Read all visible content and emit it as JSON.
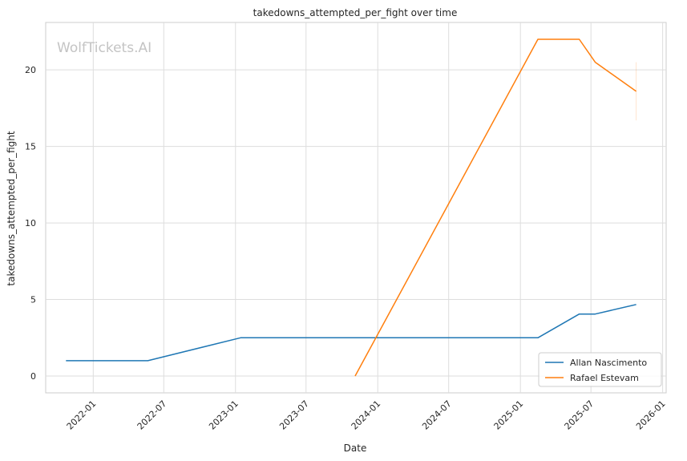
{
  "chart_data": {
    "type": "line",
    "title": "takedowns_attempted_per_fight over time",
    "xlabel": "Date",
    "ylabel": "takedowns_attempted_per_fight",
    "watermark": "WolfTickets.AI",
    "x_ticks": [
      "2022-01",
      "2022-07",
      "2023-01",
      "2023-07",
      "2024-01",
      "2024-07",
      "2025-01",
      "2025-07",
      "2026-01"
    ],
    "y_ticks": [
      0,
      5,
      10,
      15,
      20
    ],
    "xlim": [
      "2021-09-01",
      "2026-01-10"
    ],
    "ylim": [
      -1.1,
      23.1
    ],
    "grid": true,
    "legend_position": "bottom-right",
    "series": [
      {
        "name": "Allan Nascimento",
        "color": "#1f77b4",
        "points": [
          {
            "x": "2021-10-23",
            "y": 1.0
          },
          {
            "x": "2022-05-21",
            "y": 1.0
          },
          {
            "x": "2023-01-14",
            "y": 2.5
          },
          {
            "x": "2025-02-15",
            "y": 2.5
          },
          {
            "x": "2025-06-01",
            "y": 4.05
          },
          {
            "x": "2025-07-12",
            "y": 4.05
          },
          {
            "x": "2025-10-25",
            "y": 4.67
          }
        ]
      },
      {
        "name": "Rafael Estevam",
        "color": "#ff7f0e",
        "points": [
          {
            "x": "2023-11-04",
            "y": 0.0
          },
          {
            "x": "2025-02-15",
            "y": 22.0
          },
          {
            "x": "2025-06-01",
            "y": 22.0
          },
          {
            "x": "2025-07-12",
            "y": 20.5
          },
          {
            "x": "2025-10-25",
            "y": 18.6
          }
        ],
        "error_band": {
          "x": "2025-10-25",
          "low": 16.7,
          "high": 20.5
        }
      }
    ]
  }
}
